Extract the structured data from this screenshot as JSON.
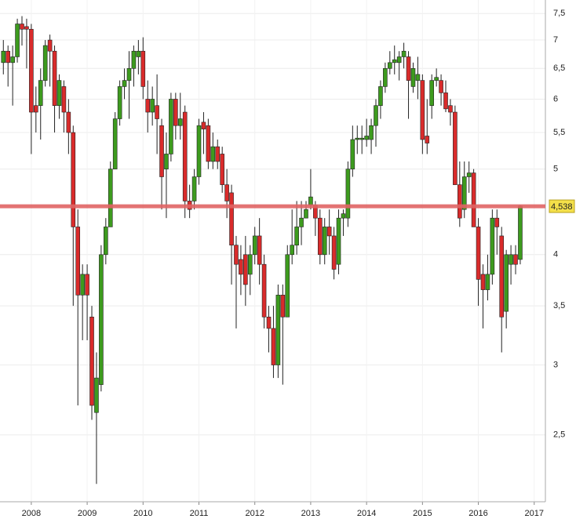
{
  "chart_data": {
    "type": "candlestick",
    "x": [
      "2007-07",
      "2007-08",
      "2007-09",
      "2007-10",
      "2007-11",
      "2007-12",
      "2008-01",
      "2008-02",
      "2008-03",
      "2008-04",
      "2008-05",
      "2008-06",
      "2008-07",
      "2008-08",
      "2008-09",
      "2008-10",
      "2008-11",
      "2008-12",
      "2009-01",
      "2009-02",
      "2009-03",
      "2009-04",
      "2009-05",
      "2009-06",
      "2009-07",
      "2009-08",
      "2009-09",
      "2009-10",
      "2009-11",
      "2009-12",
      "2010-01",
      "2010-02",
      "2010-03",
      "2010-04",
      "2010-05",
      "2010-06",
      "2010-07",
      "2010-08",
      "2010-09",
      "2010-10",
      "2010-11",
      "2010-12",
      "2011-01",
      "2011-02",
      "2011-03",
      "2011-04",
      "2011-05",
      "2011-06",
      "2011-07",
      "2011-08",
      "2011-09",
      "2011-10",
      "2011-11",
      "2011-12",
      "2012-01",
      "2012-02",
      "2012-03",
      "2012-04",
      "2012-05",
      "2012-06",
      "2012-07",
      "2012-08",
      "2012-09",
      "2012-10",
      "2012-11",
      "2012-12",
      "2013-01",
      "2013-02",
      "2013-03",
      "2013-04",
      "2013-05",
      "2013-06",
      "2013-07",
      "2013-08",
      "2013-09",
      "2013-10",
      "2013-11",
      "2013-12",
      "2014-01",
      "2014-02",
      "2014-03",
      "2014-04",
      "2014-05",
      "2014-06",
      "2014-07",
      "2014-08",
      "2014-09",
      "2014-10",
      "2014-11",
      "2014-12",
      "2015-01",
      "2015-02",
      "2015-03",
      "2015-04",
      "2015-05",
      "2015-06",
      "2015-07",
      "2015-08",
      "2015-09",
      "2015-10",
      "2015-11",
      "2015-12",
      "2016-01",
      "2016-02",
      "2016-03",
      "2016-04",
      "2016-05",
      "2016-06",
      "2016-07",
      "2016-08",
      "2016-09",
      "2016-10"
    ],
    "open": [
      6.6,
      6.8,
      6.6,
      6.7,
      7.3,
      7.25,
      7.2,
      5.9,
      5.9,
      6.3,
      7.0,
      6.8,
      5.9,
      6.2,
      5.8,
      5.5,
      4.3,
      3.6,
      3.8,
      3.4,
      2.65,
      2.85,
      4.0,
      4.3,
      5.0,
      5.7,
      6.2,
      6.3,
      6.5,
      6.7,
      6.8,
      6.0,
      5.8,
      5.9,
      5.6,
      5.0,
      5.2,
      6.0,
      5.6,
      5.8,
      4.6,
      4.6,
      4.9,
      5.65,
      5.6,
      5.1,
      5.3,
      5.2,
      4.8,
      4.7,
      4.1,
      3.95,
      4.0,
      3.8,
      4.0,
      4.2,
      3.9,
      3.4,
      3.3,
      3.0,
      3.6,
      3.4,
      4.0,
      4.1,
      4.3,
      4.4,
      4.55,
      4.55,
      4.4,
      4.0,
      4.3,
      4.2,
      3.9,
      4.4,
      4.4,
      5.0,
      5.4,
      5.4,
      5.4,
      5.4,
      5.6,
      5.9,
      6.2,
      6.5,
      6.6,
      6.6,
      6.7,
      6.7,
      6.2,
      6.3,
      6.3,
      5.45,
      5.9,
      6.3,
      6.3,
      6.1,
      5.9,
      5.8,
      4.8,
      4.5,
      4.9,
      4.95,
      4.3,
      3.8,
      3.65,
      3.8,
      4.4,
      4.2,
      3.45,
      3.9,
      4.0,
      3.95
    ],
    "high": [
      7.0,
      6.9,
      6.9,
      7.4,
      7.45,
      7.4,
      7.3,
      6.2,
      6.5,
      7.0,
      7.1,
      6.9,
      6.4,
      6.3,
      6.0,
      5.6,
      4.5,
      3.9,
      3.9,
      3.5,
      3.1,
      4.1,
      4.4,
      5.1,
      5.8,
      6.3,
      6.5,
      6.8,
      6.9,
      7.0,
      7.05,
      6.3,
      6.2,
      6.4,
      5.7,
      5.5,
      6.1,
      6.1,
      6.1,
      5.9,
      4.8,
      5.0,
      5.7,
      5.8,
      5.7,
      5.5,
      5.4,
      5.3,
      5.0,
      4.8,
      4.2,
      4.1,
      4.2,
      4.1,
      4.3,
      4.4,
      4.0,
      3.5,
      3.5,
      3.7,
      3.7,
      4.1,
      4.5,
      4.6,
      4.6,
      4.6,
      5.0,
      4.6,
      4.5,
      4.4,
      4.5,
      4.3,
      4.5,
      4.5,
      5.1,
      5.6,
      5.6,
      5.6,
      5.7,
      5.7,
      6.0,
      6.3,
      6.6,
      6.8,
      6.9,
      6.8,
      6.95,
      6.8,
      6.6,
      6.7,
      6.4,
      6.0,
      6.4,
      6.5,
      6.4,
      6.3,
      6.0,
      5.9,
      5.1,
      5.1,
      5.1,
      5.0,
      4.4,
      3.9,
      4.0,
      4.5,
      4.5,
      4.3,
      4.05,
      4.1,
      4.1,
      4.55
    ],
    "low": [
      6.4,
      6.2,
      5.9,
      6.6,
      6.9,
      6.5,
      5.2,
      5.5,
      5.4,
      6.2,
      6.2,
      5.5,
      5.7,
      5.5,
      5.2,
      3.5,
      2.7,
      3.2,
      3.2,
      2.6,
      2.2,
      2.8,
      3.9,
      4.3,
      5.0,
      5.6,
      6.0,
      5.7,
      6.2,
      6.4,
      6.0,
      5.5,
      5.6,
      5.2,
      4.5,
      4.4,
      5.1,
      5.4,
      5.4,
      4.4,
      4.4,
      4.5,
      4.8,
      5.2,
      5.0,
      5.0,
      5.0,
      4.7,
      4.4,
      3.7,
      3.3,
      3.6,
      3.5,
      3.6,
      3.9,
      3.7,
      3.3,
      3.1,
      2.9,
      2.9,
      2.85,
      3.4,
      3.9,
      4.0,
      4.1,
      4.4,
      4.5,
      4.2,
      3.9,
      3.9,
      4.0,
      3.75,
      3.8,
      4.2,
      4.3,
      4.9,
      5.2,
      5.2,
      5.3,
      5.2,
      5.3,
      5.7,
      6.1,
      6.4,
      6.4,
      6.3,
      6.5,
      5.7,
      6.1,
      6.0,
      5.2,
      5.2,
      5.7,
      6.2,
      5.9,
      5.8,
      5.6,
      4.8,
      4.3,
      4.4,
      4.7,
      4.3,
      3.5,
      3.3,
      3.55,
      3.7,
      4.0,
      3.1,
      3.3,
      3.7,
      3.8,
      3.9
    ],
    "close": [
      6.8,
      6.6,
      6.7,
      7.3,
      7.2,
      7.2,
      5.8,
      5.8,
      6.3,
      6.9,
      6.8,
      5.9,
      6.3,
      5.8,
      5.5,
      4.3,
      3.6,
      3.8,
      3.6,
      2.7,
      2.9,
      4.0,
      4.3,
      5.0,
      5.7,
      6.2,
      6.3,
      6.5,
      6.8,
      6.8,
      6.2,
      5.8,
      6.0,
      5.7,
      4.9,
      5.2,
      6.0,
      5.6,
      5.7,
      4.6,
      4.5,
      4.9,
      5.6,
      5.55,
      5.1,
      5.3,
      5.1,
      4.8,
      4.6,
      4.1,
      3.9,
      3.8,
      3.7,
      4.0,
      4.2,
      3.9,
      3.4,
      3.3,
      3.0,
      3.6,
      3.4,
      4.0,
      4.1,
      4.3,
      4.4,
      4.5,
      4.65,
      4.4,
      4.0,
      4.3,
      4.2,
      3.85,
      4.4,
      4.45,
      5.0,
      5.4,
      5.42,
      5.42,
      5.45,
      5.6,
      5.9,
      6.2,
      6.5,
      6.6,
      6.65,
      6.7,
      6.8,
      6.3,
      6.5,
      6.4,
      5.4,
      5.35,
      6.3,
      6.35,
      6.1,
      5.85,
      5.8,
      4.8,
      4.4,
      4.9,
      4.95,
      4.3,
      3.75,
      3.65,
      3.8,
      4.4,
      4.3,
      3.4,
      4.0,
      4.0,
      3.9,
      4.54
    ],
    "up_color": "#3d9b1e",
    "down_color": "#d92b2b",
    "log_scale": true,
    "grid": true,
    "xlim": [
      2007.44,
      2017.2
    ],
    "xticks": [
      2008,
      2009,
      2010,
      2011,
      2012,
      2013,
      2014,
      2015,
      2016,
      2017
    ],
    "ylim": [
      2.1,
      7.77
    ],
    "yticks": [
      {
        "value": 2.5,
        "label": "2,5"
      },
      3,
      {
        "value": 3.5,
        "label": "3,5"
      },
      4,
      5,
      {
        "value": 5.5,
        "label": "5,5"
      },
      6,
      {
        "value": 6.5,
        "label": "6,5"
      },
      7,
      {
        "value": 7.5,
        "label": "7,5"
      }
    ],
    "last_price": {
      "value": 4.538,
      "label": "4,538"
    },
    "last_price_color": "#e06464"
  }
}
